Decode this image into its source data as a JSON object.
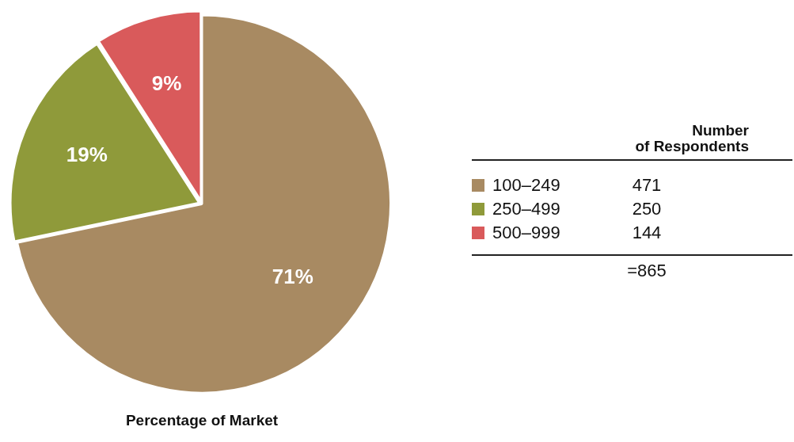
{
  "chart_data": {
    "type": "pie",
    "title": "Percentage of Market",
    "legend_title": "Number of Respondents",
    "legend": "right",
    "categories": [
      "100–249",
      "250–499",
      "500–999"
    ],
    "values": [
      71,
      19,
      9
    ],
    "value_labels": [
      "71%",
      "19%",
      "9%"
    ],
    "colors": [
      "#a88a62",
      "#8f9a3a",
      "#d95a5b"
    ],
    "annotations": [
      "471",
      "250",
      "144",
      "=865"
    ]
  }
}
